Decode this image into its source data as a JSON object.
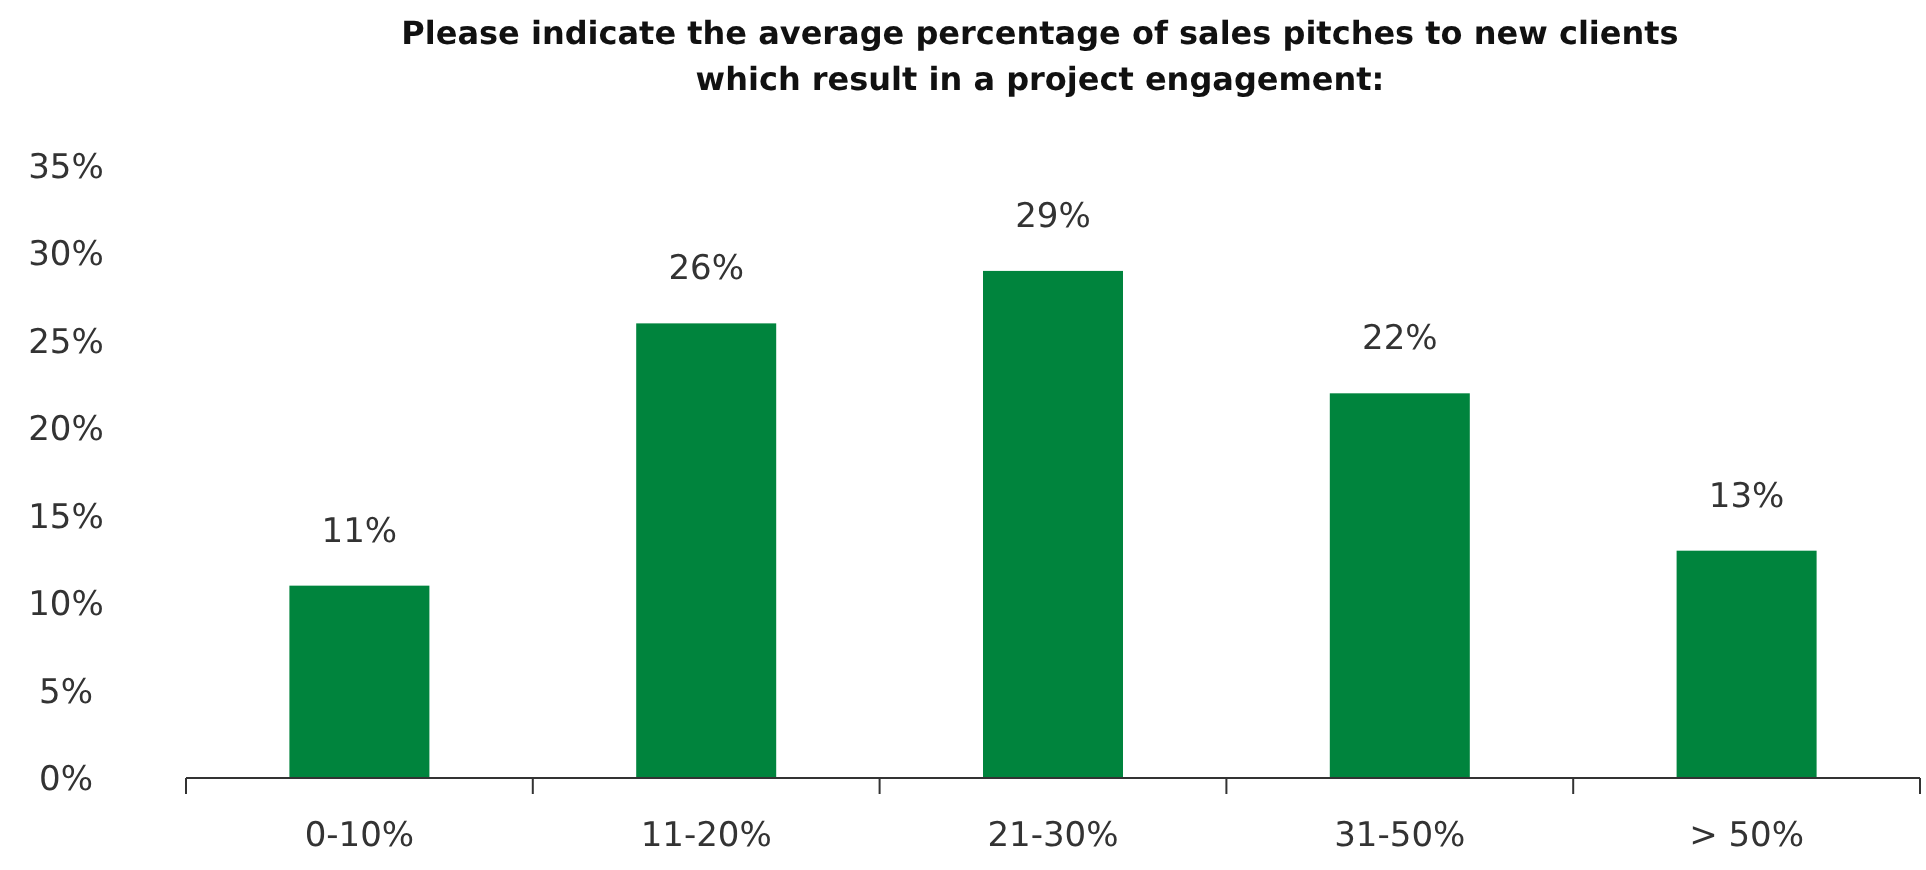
{
  "chart_data": {
    "type": "bar",
    "title": "Please indicate the average percentage of sales pitches to new clients\nwhich result in a project engagement:",
    "categories": [
      "0-10%",
      "11-20%",
      "21-30%",
      "31-50%",
      "> 50%"
    ],
    "values": [
      11,
      26,
      29,
      22,
      13
    ],
    "value_labels": [
      "11%",
      "26%",
      "29%",
      "22%",
      "13%"
    ],
    "color": "#00843d",
    "ylim": [
      0,
      35
    ],
    "yticks": [
      {
        "value": 0,
        "label": "0%"
      },
      {
        "value": 5,
        "label": "5%"
      },
      {
        "value": 10,
        "label": "10%"
      },
      {
        "value": 15,
        "label": "15%"
      },
      {
        "value": 20,
        "label": "20%"
      },
      {
        "value": 25,
        "label": "25%"
      },
      {
        "value": 30,
        "label": "30%"
      },
      {
        "value": 35,
        "label": "35%"
      }
    ],
    "grid": false
  }
}
